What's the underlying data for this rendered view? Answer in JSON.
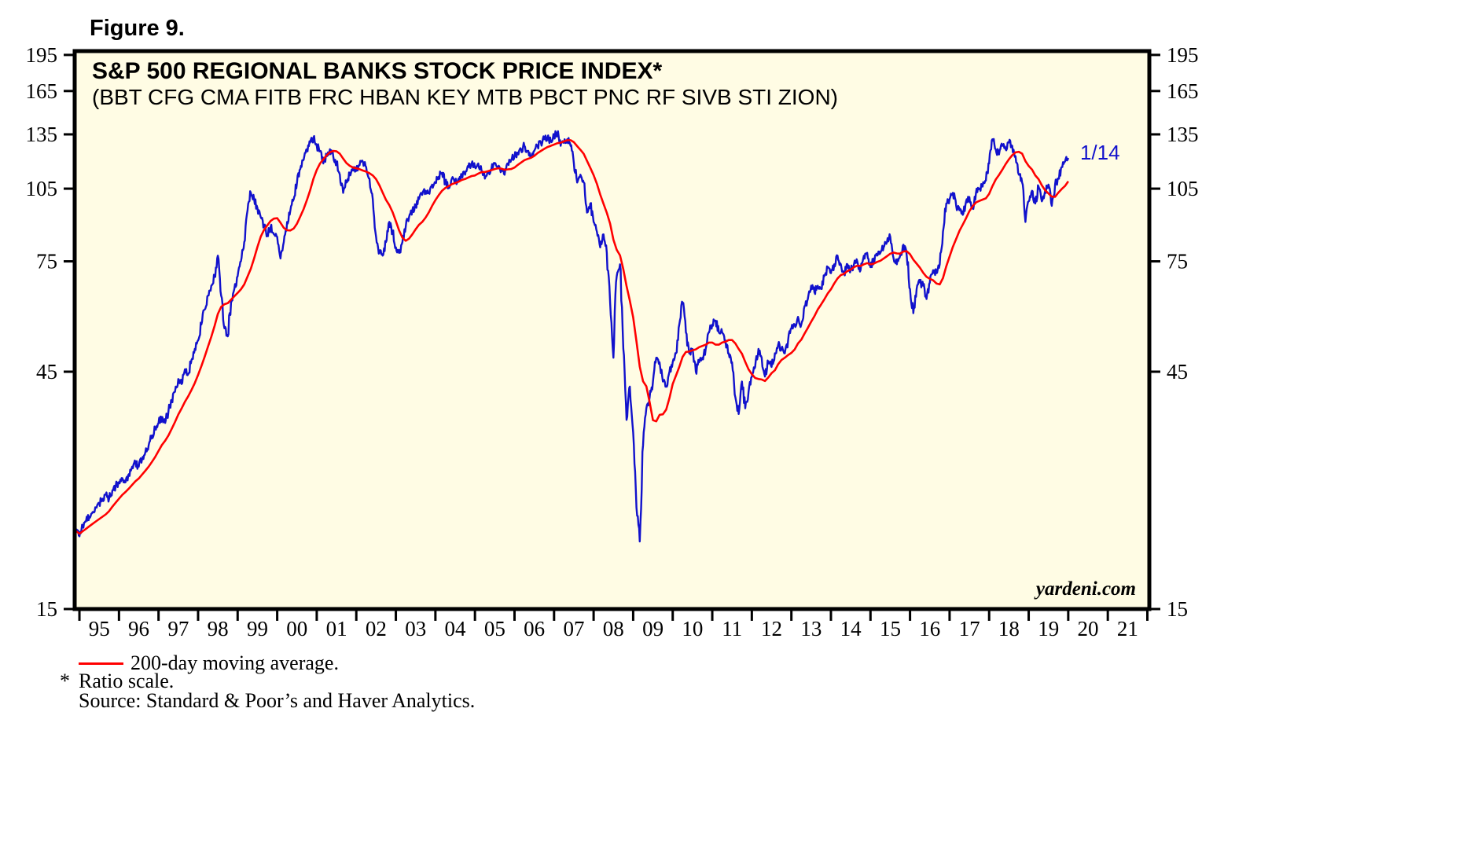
{
  "figure_label": "Figure 9.",
  "header": {
    "title": "S&P 500 REGIONAL BANKS STOCK PRICE INDEX*",
    "subtitle": "(BBT CFG CMA FITB FRC HBAN KEY MTB PBCT PNC RF SIVB STI ZION)"
  },
  "watermark": "yardeni.com",
  "legend": {
    "ma_label": "200-day moving average."
  },
  "footnotes": {
    "asterisk": "*",
    "ratio_scale": "Ratio scale.",
    "source": "Source: Standard & Poor’s and Haver Analytics."
  },
  "colors": {
    "price_line": "#1111cc",
    "ma_line": "#ff0000",
    "plot_bg": "#fffce4",
    "axis": "#000000",
    "text": "#000000"
  },
  "chart_data": {
    "type": "line",
    "title": "S&P 500 REGIONAL BANKS STOCK PRICE INDEX*",
    "subtitle": "(BBT CFG CMA FITB FRC HBAN KEY MTB PBCT PNC RF SIVB STI ZION)",
    "y_scale": "log (ratio scale)",
    "grid": false,
    "legend_position": "below",
    "y_ticks": [
      15,
      45,
      75,
      105,
      135,
      165,
      195
    ],
    "y_range": [
      15,
      198.5
    ],
    "x_range": [
      1994.88,
      2022.05
    ],
    "x_tick_years": [
      1995,
      1996,
      1997,
      1998,
      1999,
      2000,
      2001,
      2002,
      2003,
      2004,
      2005,
      2006,
      2007,
      2008,
      2009,
      2010,
      2011,
      2012,
      2013,
      2014,
      2015,
      2016,
      2017,
      2018,
      2019,
      2020,
      2021,
      2022
    ],
    "x_labels": [
      "95",
      "96",
      "97",
      "98",
      "99",
      "00",
      "01",
      "02",
      "03",
      "04",
      "05",
      "06",
      "07",
      "08",
      "09",
      "10",
      "11",
      "12",
      "13",
      "14",
      "15",
      "16",
      "17",
      "18",
      "19",
      "20",
      "21"
    ],
    "annotation": {
      "label": "1/14",
      "year": 2020.3,
      "value": 121
    },
    "series": [
      {
        "name": "S&P 500 Regional Banks stock price index (daily)",
        "color_key": "price_line",
        "start_year": 1994.917,
        "step_years": 0.083333,
        "values": [
          21.5,
          21,
          22,
          22.5,
          23,
          23.5,
          24,
          24.5,
          25,
          25.5,
          25,
          26,
          26.5,
          27,
          27.5,
          27,
          28,
          29,
          29.5,
          29,
          30,
          31,
          32,
          33.5,
          34.5,
          35.5,
          36.5,
          35.5,
          37.5,
          39.5,
          41,
          43.5,
          42.5,
          45.5,
          44.5,
          47.5,
          50,
          52,
          56,
          60,
          64,
          67,
          70,
          77,
          64,
          55,
          53,
          62,
          66,
          70,
          75,
          82,
          95,
          103,
          100,
          96,
          92,
          88,
          85,
          88,
          85,
          84,
          76,
          82,
          90,
          95,
          100,
          108,
          115,
          120,
          126,
          130,
          133,
          128,
          125,
          118,
          122,
          126,
          122,
          118,
          112,
          103,
          108,
          113,
          116,
          114,
          117,
          119,
          116,
          110,
          100,
          84,
          78,
          77,
          82,
          90,
          86,
          80,
          78,
          82,
          88,
          92,
          95,
          97,
          100,
          102,
          104,
          103,
          107,
          108,
          111,
          113,
          108,
          106,
          110,
          108,
          110,
          112,
          112,
          116,
          118,
          116,
          118,
          114,
          110,
          113,
          115,
          118,
          116,
          114,
          112,
          118,
          120,
          122,
          124,
          126,
          128,
          125,
          122,
          125,
          128,
          130,
          132,
          133,
          131,
          134,
          136,
          128,
          130,
          132,
          128,
          118,
          108,
          112,
          108,
          94,
          98,
          90,
          86,
          80,
          85,
          78,
          62,
          48,
          70,
          74,
          50,
          36,
          42,
          34,
          24,
          20.5,
          32,
          38,
          40,
          43,
          48,
          47,
          43,
          42,
          45,
          47,
          49,
          56,
          62,
          54,
          49,
          50,
          45,
          47,
          48,
          50,
          54,
          56,
          57,
          54,
          54,
          52,
          49,
          47,
          40,
          37,
          43,
          38,
          41,
          44,
          46,
          50,
          48,
          44,
          47,
          46,
          49,
          51,
          50,
          49,
          52,
          55,
          56,
          58,
          56,
          61,
          63,
          67,
          65,
          67,
          66,
          70,
          73,
          71,
          74,
          77,
          74,
          71,
          74,
          72,
          74,
          75,
          72,
          77,
          78,
          73,
          76,
          77,
          78,
          80,
          82,
          84,
          76,
          74,
          77,
          81,
          77,
          66,
          59,
          66,
          68,
          67,
          63,
          68,
          72,
          71,
          74,
          86,
          98,
          100,
          103,
          97,
          95,
          93,
          99,
          101,
          96,
          103,
          105,
          106,
          109,
          118,
          132,
          126,
          123,
          128,
          126,
          130,
          128,
          122,
          112,
          108,
          90,
          99,
          104,
          98,
          106,
          99,
          104,
          107,
          97,
          107,
          110,
          116,
          119,
          121
        ]
      },
      {
        "name": "200-day moving average",
        "color_key": "ma_line",
        "derived_from": "series 0",
        "method": "trailing mean, 10-month window"
      }
    ],
    "render": {
      "noise_seed": 20200114,
      "noise_pct": 1.6,
      "subdivisions": 5
    }
  }
}
